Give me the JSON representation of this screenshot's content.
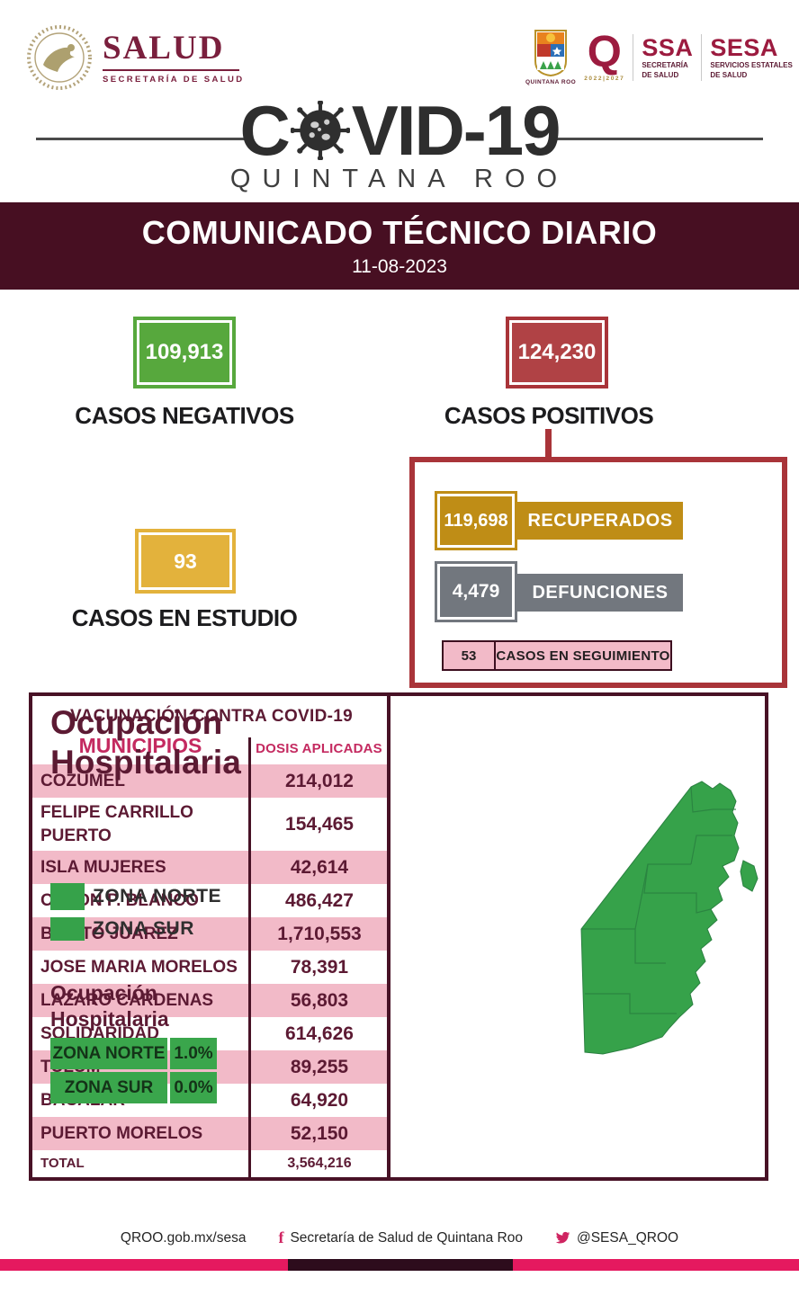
{
  "header": {
    "salud": {
      "title": "SALUD",
      "subtitle": "SECRETARÍA DE SALUD"
    },
    "qroo_logo_caption": "QUINTANA ROO",
    "q_logo": {
      "letter": "Q",
      "years": "2022|2027"
    },
    "ssa": {
      "abbr": "SSA",
      "line1": "SECRETARÍA",
      "line2": "DE SALUD"
    },
    "sesa": {
      "abbr": "SESA",
      "line1": "SERVICIOS ESTATALES",
      "line2": "DE SALUD"
    }
  },
  "title": {
    "covid_left": "C",
    "covid_right": "VID-19",
    "subtitle": "QUINTANA ROO"
  },
  "banner": {
    "title": "COMUNICADO TÉCNICO DIARIO",
    "date": "11-08-2023",
    "background": "#470f22"
  },
  "stats": {
    "negativos": {
      "value": "109,913",
      "label": "CASOS NEGATIVOS",
      "color": "#57a83d"
    },
    "positivos": {
      "value": "124,230",
      "label": "CASOS POSITIVOS",
      "color": "#b04245",
      "border": "#a93439"
    },
    "estudio": {
      "value": "93",
      "label": "CASOS EN ESTUDIO",
      "color": "#e3b23c"
    },
    "recuperados": {
      "value": "119,698",
      "label": "RECUPERADOS",
      "color": "#bf8d16"
    },
    "defunciones": {
      "value": "4,479",
      "label": "DEFUNCIONES",
      "color": "#72777e"
    },
    "seguimiento": {
      "value": "53",
      "label": "CASOS EN SEGUIMIENTO",
      "color": "#f2bac8"
    }
  },
  "vaccination": {
    "title": "VACUNACIÓN CONTRA COVID-19",
    "col1": "MUNICIPIOS",
    "col2": "DOSIS APLICADAS",
    "rows": [
      [
        "COZUMEL",
        "214,012"
      ],
      [
        "FELIPE CARRILLO PUERTO",
        "154,465"
      ],
      [
        "ISLA MUJERES",
        "42,614"
      ],
      [
        "OTHON P. BLANCO",
        "486,427"
      ],
      [
        "BENITO JUAREZ",
        "1,710,553"
      ],
      [
        "JOSE MARIA MORELOS",
        "78,391"
      ],
      [
        "LAZARO CARDENAS",
        "56,803"
      ],
      [
        "SOLIDARIDAD",
        "614,626"
      ],
      [
        "TULUM",
        "89,255"
      ],
      [
        "BACALAR",
        "64,920"
      ],
      [
        "PUERTO MORELOS",
        "52,150"
      ]
    ],
    "total_label": "TOTAL",
    "total_value": "3,564,216"
  },
  "hospital": {
    "title_line1": "Ocupación",
    "title_line2": "Hospitalaria",
    "legend": [
      {
        "label": "ZONA NORTE"
      },
      {
        "label": "ZONA SUR"
      }
    ],
    "subtitle_line1": "Ocupación",
    "subtitle_line2": "Hospitalaria",
    "zones": [
      {
        "name": "ZONA NORTE",
        "value": "1.0%"
      },
      {
        "name": "ZONA SUR",
        "value": "0.0%"
      }
    ],
    "map_color": "#36a24a"
  },
  "footer": {
    "website": "QROO.gob.mx/sesa",
    "facebook": "Secretaría de Salud de Quintana Roo",
    "twitter": "@SESA_QROO",
    "bar_pink": "#e5195f",
    "bar_dark": "#2d0c1c"
  }
}
